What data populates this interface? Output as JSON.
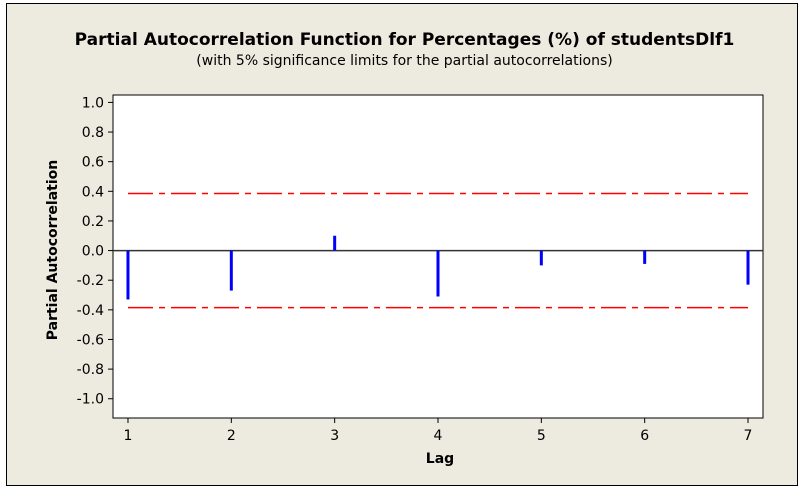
{
  "chart_data": {
    "type": "bar",
    "title": "Partial Autocorrelation Function for Percentages (%) of studentsDlf1",
    "subtitle": "(with 5% significance limits for the partial autocorrelations)",
    "xlabel": "Lag",
    "ylabel": "Partial Autocorrelation",
    "x": [
      1,
      2,
      3,
      4,
      5,
      6,
      7
    ],
    "x_tick_labels": [
      "1",
      "2",
      "3",
      "4",
      "5",
      "6",
      "7"
    ],
    "values": [
      -0.33,
      -0.27,
      0.1,
      -0.31,
      -0.1,
      -0.09,
      -0.23
    ],
    "significance_limits": [
      0.385,
      -0.385
    ],
    "y_tick_labels": [
      "1.0",
      "0.8",
      "0.6",
      "0.4",
      "0.2",
      "0.0",
      "-0.2",
      "-0.4",
      "-0.6",
      "-0.8",
      "-1.0"
    ],
    "y_ticks": [
      1.0,
      0.8,
      0.6,
      0.4,
      0.2,
      0.0,
      -0.2,
      -0.4,
      -0.6,
      -0.8,
      -1.0
    ],
    "ylim": [
      -1.13,
      1.05
    ],
    "xlim": [
      0.855,
      7.145
    ],
    "grid": false,
    "colors": {
      "bar": "#0000FF",
      "limit": "#FF0000",
      "background": "#EDEADF",
      "plot": "#FFFFFF"
    }
  }
}
